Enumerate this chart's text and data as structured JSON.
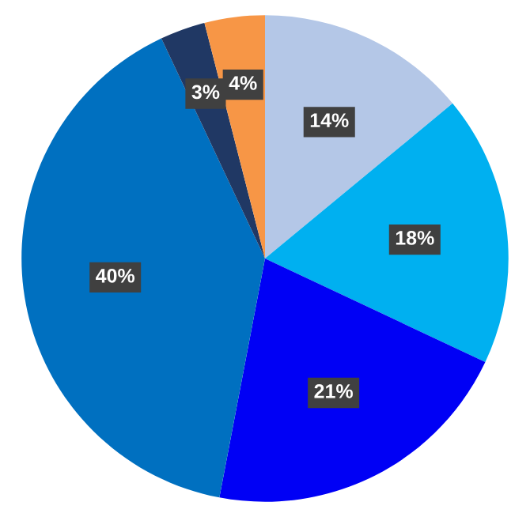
{
  "chart_data": {
    "type": "pie",
    "categories": [
      null,
      null,
      null,
      null,
      null,
      null
    ],
    "values": [
      14,
      18,
      21,
      40,
      3,
      4
    ],
    "colors": [
      "#b4c7e7",
      "#00b0f0",
      "#0000f5",
      "#0070c0",
      "#203864",
      "#f79646"
    ],
    "value_labels": [
      "14%",
      "18%",
      "21%",
      "40%",
      "3%",
      "4%"
    ]
  }
}
